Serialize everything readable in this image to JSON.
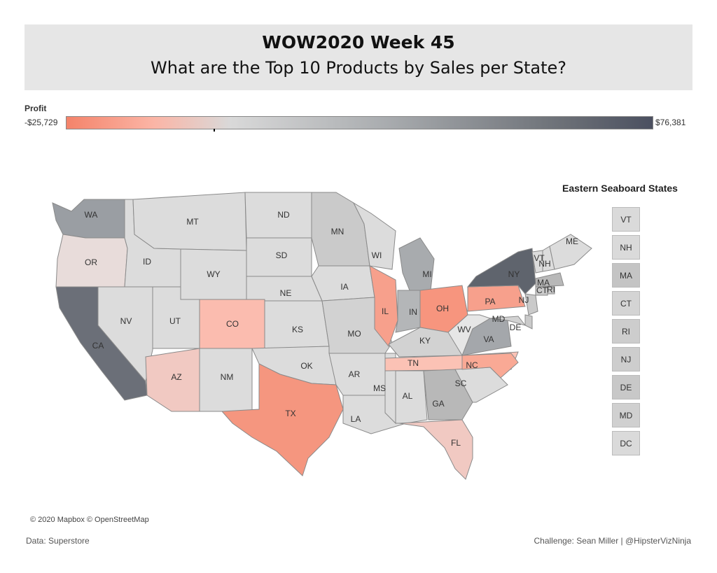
{
  "header": {
    "title": "WOW2020 Week 45",
    "subtitle": "What are the Top 10 Products by Sales per State?"
  },
  "legend": {
    "label": "Profit",
    "min": "-$25,729",
    "max": "$76,381",
    "colors": [
      "#f4836a",
      "#fbb5a6",
      "#d9d9d9",
      "#a8abae",
      "#6b6f76",
      "#4b5060"
    ]
  },
  "map": {
    "states": [
      {
        "code": "WA",
        "fill": "#9a9ea3"
      },
      {
        "code": "OR",
        "fill": "#e8dcda"
      },
      {
        "code": "CA",
        "fill": "#6b6f78"
      },
      {
        "code": "ID",
        "fill": "#dcdcdc"
      },
      {
        "code": "NV",
        "fill": "#dcdcdc"
      },
      {
        "code": "MT",
        "fill": "#dcdcdc"
      },
      {
        "code": "WY",
        "fill": "#dcdcdc"
      },
      {
        "code": "UT",
        "fill": "#dcdcdc"
      },
      {
        "code": "CO",
        "fill": "#fbbcaf"
      },
      {
        "code": "AZ",
        "fill": "#f1c9c2"
      },
      {
        "code": "NM",
        "fill": "#dcdcdc"
      },
      {
        "code": "ND",
        "fill": "#dcdcdc"
      },
      {
        "code": "SD",
        "fill": "#dcdcdc"
      },
      {
        "code": "NE",
        "fill": "#dcdcdc"
      },
      {
        "code": "KS",
        "fill": "#dcdcdc"
      },
      {
        "code": "OK",
        "fill": "#dcdcdc"
      },
      {
        "code": "TX",
        "fill": "#f5967f"
      },
      {
        "code": "MN",
        "fill": "#cacaca"
      },
      {
        "code": "IA",
        "fill": "#dcdcdc"
      },
      {
        "code": "MO",
        "fill": "#d2d2d2"
      },
      {
        "code": "AR",
        "fill": "#dcdcdc"
      },
      {
        "code": "LA",
        "fill": "#dcdcdc"
      },
      {
        "code": "WI",
        "fill": "#dcdcdc"
      },
      {
        "code": "IL",
        "fill": "#f7a08c"
      },
      {
        "code": "MS",
        "fill": "#dcdcdc"
      },
      {
        "code": "MI",
        "fill": "#a8abae"
      },
      {
        "code": "IN",
        "fill": "#b4b6b8"
      },
      {
        "code": "OH",
        "fill": "#f7957e"
      },
      {
        "code": "KY",
        "fill": "#d2d2d2"
      },
      {
        "code": "TN",
        "fill": "#fbc2b5"
      },
      {
        "code": "AL",
        "fill": "#dcdcdc"
      },
      {
        "code": "GA",
        "fill": "#b8b8b8"
      },
      {
        "code": "FL",
        "fill": "#f1c9c2"
      },
      {
        "code": "SC",
        "fill": "#dcdcdc"
      },
      {
        "code": "NC",
        "fill": "#f9a995"
      },
      {
        "code": "VA",
        "fill": "#a4a7ab"
      },
      {
        "code": "WV",
        "fill": "#e6e6e6"
      },
      {
        "code": "PA",
        "fill": "#f7a08c"
      },
      {
        "code": "NY",
        "fill": "#5f646d"
      },
      {
        "code": "VT",
        "fill": "#dcdcdc"
      },
      {
        "code": "NH",
        "fill": "#dcdcdc"
      },
      {
        "code": "ME",
        "fill": "#dcdcdc"
      },
      {
        "code": "MA",
        "fill": "#b8b8b8"
      },
      {
        "code": "NJ",
        "fill": "#cacaca"
      },
      {
        "code": "MD",
        "fill": "#d2d2d2"
      },
      {
        "code": "DE",
        "fill": "#cacaca"
      },
      {
        "code": "CT",
        "fill": "#cacaca"
      },
      {
        "code": "RI",
        "fill": "#cacaca"
      }
    ]
  },
  "eastern": {
    "title": "Eastern Seaboard States",
    "states": [
      {
        "code": "VT",
        "fill": "#dadada"
      },
      {
        "code": "NH",
        "fill": "#dadada"
      },
      {
        "code": "MA",
        "fill": "#c4c4c4"
      },
      {
        "code": "CT",
        "fill": "#d4d4d4"
      },
      {
        "code": "RI",
        "fill": "#cdcdcd"
      },
      {
        "code": "NJ",
        "fill": "#cdcdcd"
      },
      {
        "code": "DE",
        "fill": "#c8c8c8"
      },
      {
        "code": "MD",
        "fill": "#d0d0d0"
      },
      {
        "code": "DC",
        "fill": "#dadada"
      }
    ]
  },
  "footer": {
    "copyright": "© 2020 Mapbox © OpenStreetMap",
    "source": "Data: Superstore",
    "credit": "Challenge: Sean Miller | @HipsterVizNinja"
  }
}
